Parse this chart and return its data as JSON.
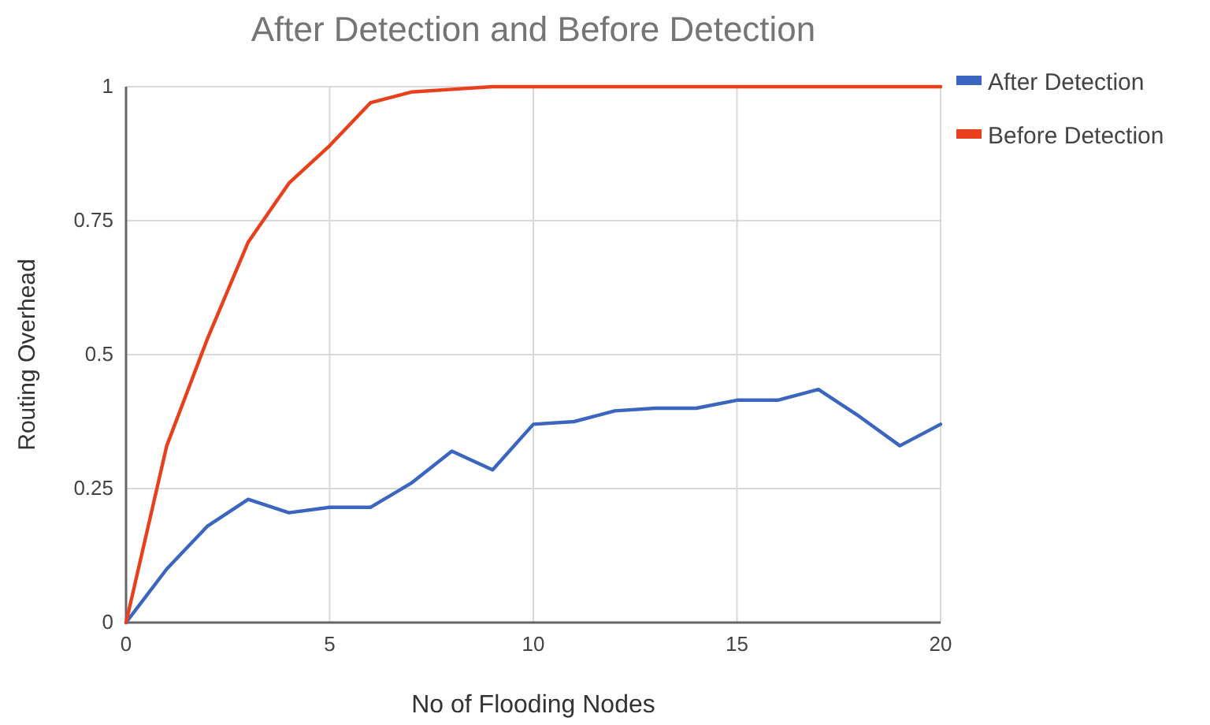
{
  "chart_data": {
    "type": "line",
    "title": "After Detection and Before Detection",
    "xlabel": "No of Flooding Nodes",
    "ylabel": "Routing Overhead",
    "x": [
      0,
      1,
      2,
      3,
      4,
      5,
      6,
      7,
      8,
      9,
      10,
      11,
      12,
      13,
      14,
      15,
      16,
      17,
      18,
      19,
      20
    ],
    "series": [
      {
        "name": "After Detection",
        "color": "#3c65c0",
        "values": [
          0,
          0.1,
          0.18,
          0.23,
          0.205,
          0.215,
          0.215,
          0.26,
          0.32,
          0.285,
          0.37,
          0.375,
          0.395,
          0.4,
          0.4,
          0.415,
          0.415,
          0.435,
          0.385,
          0.33,
          0.37
        ]
      },
      {
        "name": "Before Detection",
        "color": "#e8401c",
        "values": [
          0,
          0.33,
          0.53,
          0.71,
          0.82,
          0.89,
          0.97,
          0.99,
          0.995,
          1,
          1,
          1,
          1,
          1,
          1,
          1,
          1,
          1,
          1,
          1,
          1
        ]
      }
    ],
    "xlim": [
      0,
      20
    ],
    "xticks": [
      0,
      5,
      10,
      15,
      20
    ],
    "ylim": [
      0,
      1
    ],
    "yticks": [
      0,
      0.25,
      0.5,
      0.75,
      1
    ],
    "grid": true,
    "legend": "right",
    "marker": "none",
    "line_style": "solid"
  }
}
